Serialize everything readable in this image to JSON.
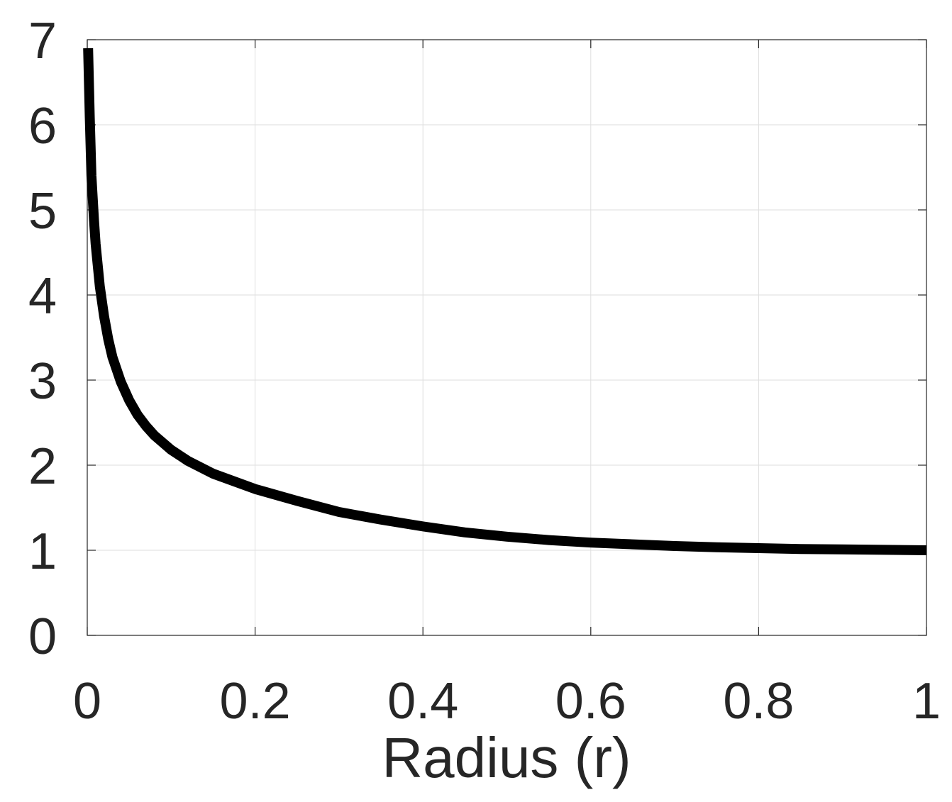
{
  "chart_data": {
    "type": "line",
    "title": "",
    "xlabel": "Radius (r)",
    "ylabel": "",
    "xlim": [
      0,
      1
    ],
    "ylim": [
      0,
      7
    ],
    "xticks": [
      0,
      0.2,
      0.4,
      0.6,
      0.8,
      1
    ],
    "xtick_labels": [
      "0",
      "0.2",
      "0.4",
      "0.6",
      "0.8",
      "1"
    ],
    "yticks": [
      0,
      1,
      2,
      3,
      4,
      5,
      6,
      7
    ],
    "ytick_labels": [
      "0",
      "1",
      "2",
      "3",
      "4",
      "5",
      "6",
      "7"
    ],
    "grid": true,
    "legend": "none",
    "series": [
      {
        "color": "#000000",
        "x": [
          0.001,
          0.003,
          0.005,
          0.008,
          0.01,
          0.015,
          0.02,
          0.025,
          0.03,
          0.04,
          0.05,
          0.06,
          0.07,
          0.08,
          0.1,
          0.12,
          0.15,
          0.2,
          0.25,
          0.3,
          0.35,
          0.4,
          0.45,
          0.5,
          0.55,
          0.6,
          0.65,
          0.7,
          0.75,
          0.8,
          0.85,
          0.9,
          0.95,
          1.0
        ],
        "y": [
          6.9,
          6.1,
          5.4,
          4.88,
          4.6,
          4.1,
          3.75,
          3.48,
          3.27,
          2.98,
          2.76,
          2.59,
          2.46,
          2.35,
          2.18,
          2.05,
          1.9,
          1.72,
          1.58,
          1.45,
          1.36,
          1.28,
          1.21,
          1.16,
          1.12,
          1.09,
          1.07,
          1.05,
          1.035,
          1.025,
          1.015,
          1.01,
          1.005,
          1.0
        ]
      }
    ]
  }
}
